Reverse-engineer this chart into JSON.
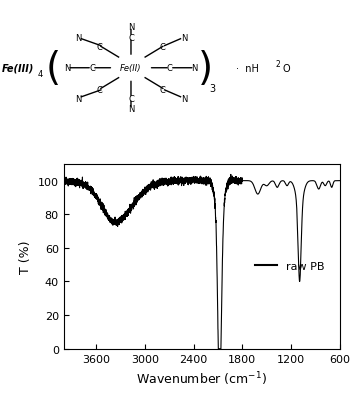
{
  "title": "",
  "xlabel": "Wavenumber (cm$^{-1}$)",
  "ylabel": "T (%)",
  "xlim": [
    600,
    4000
  ],
  "ylim": [
    0,
    110
  ],
  "xticks": [
    600,
    1200,
    1800,
    2400,
    3000,
    3600
  ],
  "yticks": [
    0,
    20,
    40,
    60,
    80,
    100
  ],
  "line_color": "black",
  "legend_label": "raw PB",
  "background_color": "white",
  "fig_width": 3.54,
  "fig_height": 4.02,
  "dpi": 100
}
